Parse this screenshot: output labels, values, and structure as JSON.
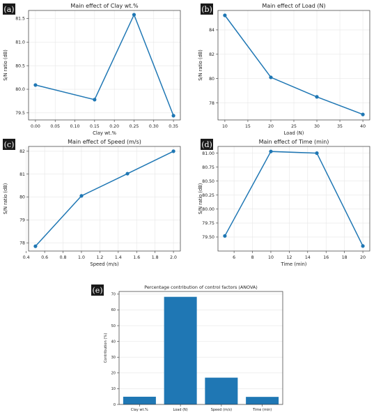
{
  "chart_data": [
    {
      "type": "line",
      "panel_label": "(a)",
      "title": "Main effect of Clay wt.%",
      "xlabel": "Clay wt.%",
      "ylabel": "S/N ratio (dB)",
      "x": [
        0.0,
        0.15,
        0.25,
        0.35
      ],
      "y": [
        80.09,
        79.78,
        81.58,
        79.44
      ],
      "xlim": [
        -0.0175,
        0.3675
      ],
      "ylim": [
        79.35,
        81.67
      ],
      "xticks": [
        "0.00",
        "0.05",
        "0.10",
        "0.15",
        "0.20",
        "0.25",
        "0.30",
        "0.35"
      ],
      "yticks": [
        "79.5",
        "80.0",
        "80.5",
        "81.0",
        "81.5"
      ],
      "grid": true,
      "color": "#1f77b4"
    },
    {
      "type": "line",
      "panel_label": "(b)",
      "title": "Main effect of Load (N)",
      "xlabel": "Load (N)",
      "ylabel": "S/N ratio (dB)",
      "x": [
        10,
        20,
        30,
        40
      ],
      "y": [
        85.2,
        80.1,
        78.5,
        77.05
      ],
      "xlim": [
        8.5,
        41.5
      ],
      "ylim": [
        76.6,
        85.6
      ],
      "xticks": [
        "10",
        "15",
        "20",
        "25",
        "30",
        "35",
        "40"
      ],
      "yticks": [
        "78",
        "80",
        "82",
        "84"
      ],
      "grid": true,
      "color": "#1f77b4"
    },
    {
      "type": "line",
      "panel_label": "(c)",
      "title": "Main effect of Speed (m/s)",
      "xlabel": "Speed (m/s)",
      "ylabel": "S/N ratio (dB)",
      "x": [
        0.5,
        1.0,
        1.5,
        2.0
      ],
      "y": [
        77.85,
        80.05,
        81.02,
        82.0
      ],
      "xlim": [
        0.425,
        2.075
      ],
      "ylim": [
        77.64,
        82.21
      ],
      "xticks": [
        "0.4",
        "0.6",
        "0.8",
        "1.0",
        "1.2",
        "1.4",
        "1.6",
        "1.8",
        "2.0"
      ],
      "yticks": [
        "78",
        "79",
        "80",
        "81",
        "82"
      ],
      "grid": true,
      "color": "#1f77b4"
    },
    {
      "type": "line",
      "panel_label": "(d)",
      "title": "Main effect of Time (min)",
      "xlabel": "Time (min)",
      "ylabel": "S/N ratio (dB)",
      "x": [
        5,
        10,
        15,
        20
      ],
      "y": [
        79.52,
        81.03,
        81.0,
        79.34
      ],
      "xlim": [
        4.25,
        20.75
      ],
      "ylim": [
        79.25,
        81.12
      ],
      "xticks": [
        "6",
        "8",
        "10",
        "12",
        "14",
        "16",
        "18",
        "20"
      ],
      "yticks": [
        "79.50",
        "79.75",
        "80.00",
        "80.25",
        "80.50",
        "80.75",
        "81.00"
      ],
      "grid": true,
      "color": "#1f77b4"
    },
    {
      "type": "bar",
      "panel_label": "(e)",
      "title": "Percentage contribution of control factors (ANOVA)",
      "xlabel": "",
      "ylabel": "Contribution (%)",
      "categories": [
        "Clay wt.%",
        "Load (N)",
        "Speed (m/s)",
        "Time (min)"
      ],
      "values": [
        4.9,
        68.3,
        17.0,
        4.8
      ],
      "ylim": [
        0,
        71.7
      ],
      "yticks": [
        "0",
        "10",
        "20",
        "30",
        "40",
        "50",
        "60",
        "70"
      ],
      "grid": true,
      "color": "#1f77b4"
    }
  ]
}
